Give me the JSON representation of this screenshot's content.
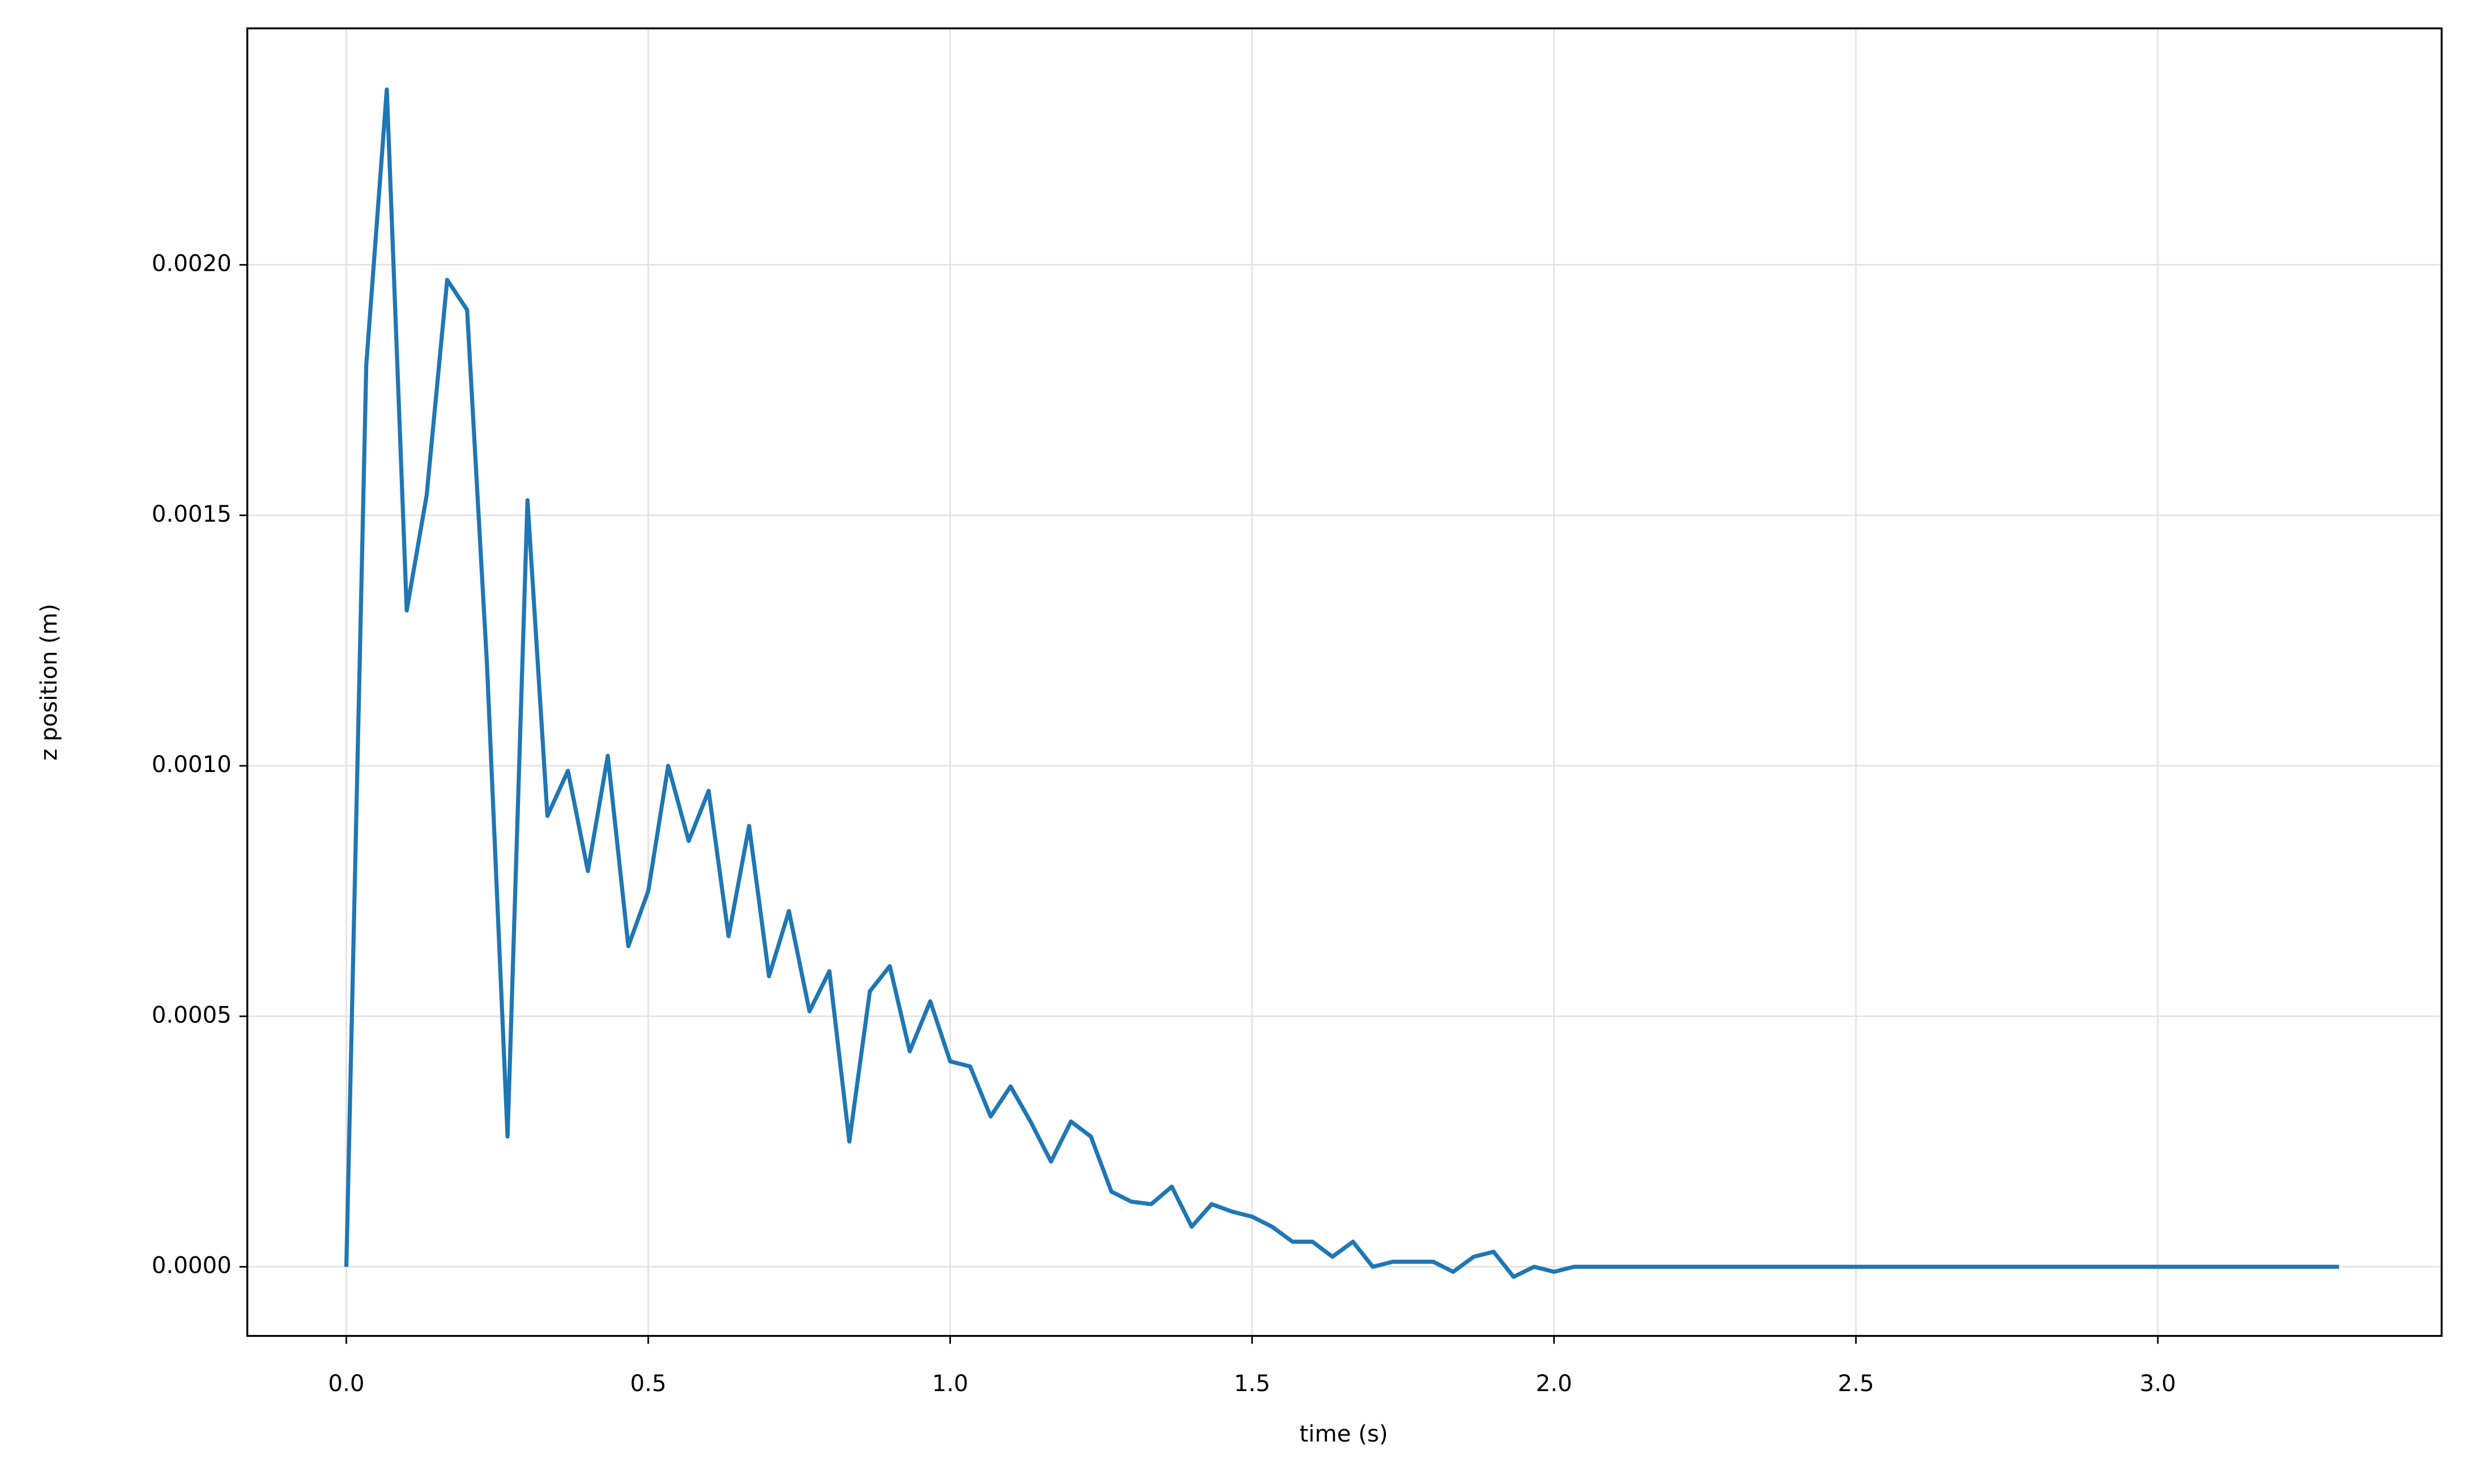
{
  "chart_data": {
    "type": "line",
    "xlabel": "time (s)",
    "ylabel": "z position (m)",
    "x": [
      0,
      0.033,
      0.067,
      0.1,
      0.133,
      0.167,
      0.2,
      0.233,
      0.267,
      0.3,
      0.333,
      0.367,
      0.4,
      0.433,
      0.467,
      0.5,
      0.533,
      0.567,
      0.6,
      0.633,
      0.667,
      0.7,
      0.733,
      0.767,
      0.8,
      0.833,
      0.867,
      0.9,
      0.933,
      0.967,
      1,
      1.033,
      1.067,
      1.1,
      1.133,
      1.167,
      1.2,
      1.233,
      1.267,
      1.3,
      1.333,
      1.367,
      1.4,
      1.433,
      1.467,
      1.5,
      1.533,
      1.567,
      1.6,
      1.633,
      1.667,
      1.7,
      1.733,
      1.767,
      1.8,
      1.833,
      1.867,
      1.9,
      1.933,
      1.967,
      2,
      2.033,
      2.067,
      2.1,
      2.133,
      2.167,
      2.2,
      2.233,
      2.267,
      2.3,
      2.333,
      2.367,
      2.4,
      2.433,
      2.467,
      2.5,
      2.533,
      2.567,
      2.6,
      2.633,
      2.667,
      2.7,
      2.733,
      2.767,
      2.8,
      2.833,
      2.867,
      2.9,
      2.933,
      2.967,
      3,
      3.033,
      3.067,
      3.1,
      3.133,
      3.167,
      3.2,
      3.233,
      3.267,
      3.3
    ],
    "series": [
      {
        "color": "#1f77b4",
        "values": [
          0,
          0.0018,
          0.00235,
          0.00131,
          0.00154,
          0.00197,
          0.00191,
          0.0012,
          0.00026,
          0.00153,
          0.0009,
          0.00099,
          0.00079,
          0.00102,
          0.00064,
          0.00075,
          0.001,
          0.00085,
          0.00095,
          0.00066,
          0.00088,
          0.00058,
          0.00071,
          0.00051,
          0.00059,
          0.00025,
          0.00055,
          0.0006,
          0.00043,
          0.00053,
          0.00041,
          0.0004,
          0.0003,
          0.00036,
          0.00029,
          0.00021,
          0.00029,
          0.00026,
          0.00015,
          0.00013,
          0.000125,
          0.00016,
          8e-05,
          0.000125,
          0.00011,
          0.0001,
          8e-05,
          5e-05,
          5e-05,
          2e-05,
          5e-05,
          0,
          1e-05,
          1e-05,
          1e-05,
          -1e-05,
          2e-05,
          3e-05,
          -2e-05,
          0,
          -1e-05,
          0,
          0,
          0,
          0,
          0,
          0,
          0,
          0,
          0,
          0,
          0,
          0,
          0,
          0,
          0,
          0,
          0,
          0,
          0,
          0,
          0,
          0,
          0,
          0,
          0,
          0,
          0,
          0,
          0,
          0,
          0,
          0,
          0,
          0,
          0,
          0,
          0,
          0,
          0
        ]
      }
    ],
    "xlim": [
      -0.164,
      3.47
    ],
    "ylim": [
      -0.000138,
      0.002472
    ],
    "xticks": [
      {
        "value": 0,
        "label": "0.0"
      },
      {
        "value": 0.5,
        "label": "0.5"
      },
      {
        "value": 1,
        "label": "1.0"
      },
      {
        "value": 1.5,
        "label": "1.5"
      },
      {
        "value": 2,
        "label": "2.0"
      },
      {
        "value": 2.5,
        "label": "2.5"
      },
      {
        "value": 3,
        "label": "3.0"
      }
    ],
    "yticks": [
      {
        "value": 0,
        "label": "0.0000"
      },
      {
        "value": 0.0005,
        "label": "0.0005"
      },
      {
        "value": 0.001,
        "label": "0.0010"
      },
      {
        "value": 0.0015,
        "label": "0.0015"
      },
      {
        "value": 0.002,
        "label": "0.0020"
      }
    ],
    "grid": true
  }
}
